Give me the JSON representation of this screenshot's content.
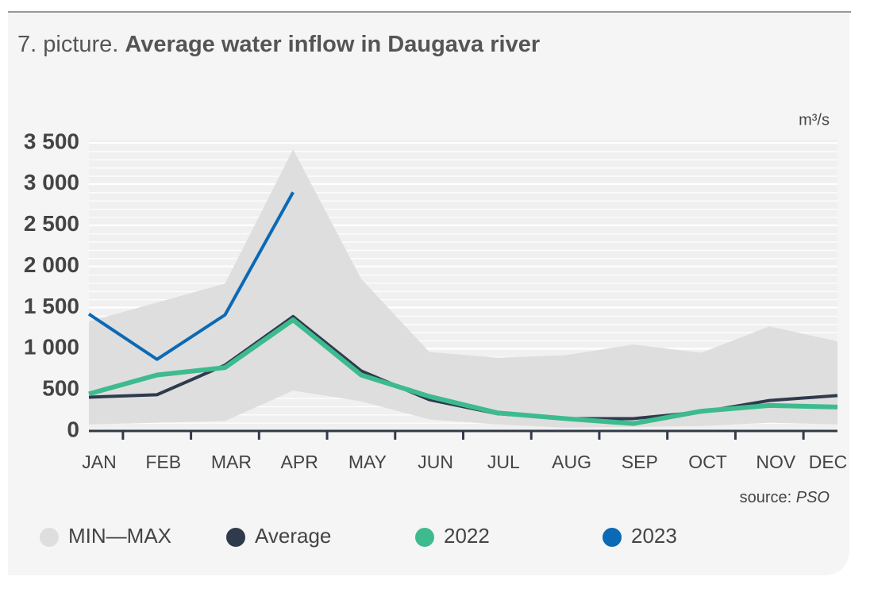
{
  "chart_data": {
    "type": "line",
    "figure_label": "7. picture.",
    "title": "Average water inflow in Daugava river",
    "unit": "m³/s",
    "source_label": "source:",
    "source": "PSO",
    "categories": [
      "JAN",
      "FEB",
      "MAR",
      "APR",
      "MAY",
      "JUN",
      "JUL",
      "AUG",
      "SEP",
      "OCT",
      "NOV",
      "DEC"
    ],
    "ylim": [
      0,
      3500
    ],
    "yticks": [
      0,
      500,
      {
        "value": 1000,
        "label": "1 000"
      },
      {
        "value": 1500,
        "label": "1 500"
      },
      {
        "value": 2000,
        "label": "2 000"
      },
      {
        "value": 2500,
        "label": "2 500"
      },
      {
        "value": 3000,
        "label": "3 000"
      },
      {
        "value": 3500,
        "label": "3 500"
      }
    ],
    "grid": true,
    "legend": "bottom",
    "series": [
      {
        "name": "MIN—MAX",
        "color": "#dedede",
        "type": "band",
        "low": [
          80,
          100,
          120,
          490,
          360,
          140,
          80,
          40,
          50,
          60,
          100,
          80
        ],
        "high": [
          1330,
          1560,
          1790,
          3420,
          1850,
          960,
          890,
          920,
          1050,
          950,
          1270,
          1090
        ]
      },
      {
        "name": "Average",
        "color": "#2f3a4d",
        "values": [
          410,
          440,
          800,
          1390,
          730,
          380,
          210,
          150,
          150,
          230,
          370,
          430
        ]
      },
      {
        "name": "2022",
        "color": "#3dbb8f",
        "values": [
          450,
          680,
          770,
          1350,
          680,
          420,
          220,
          150,
          90,
          240,
          310,
          290
        ]
      },
      {
        "name": "2023",
        "color": "#0b69b5",
        "values": [
          1420,
          870,
          1410,
          2900,
          null,
          null,
          null,
          null,
          null,
          null,
          null,
          null
        ]
      }
    ]
  }
}
